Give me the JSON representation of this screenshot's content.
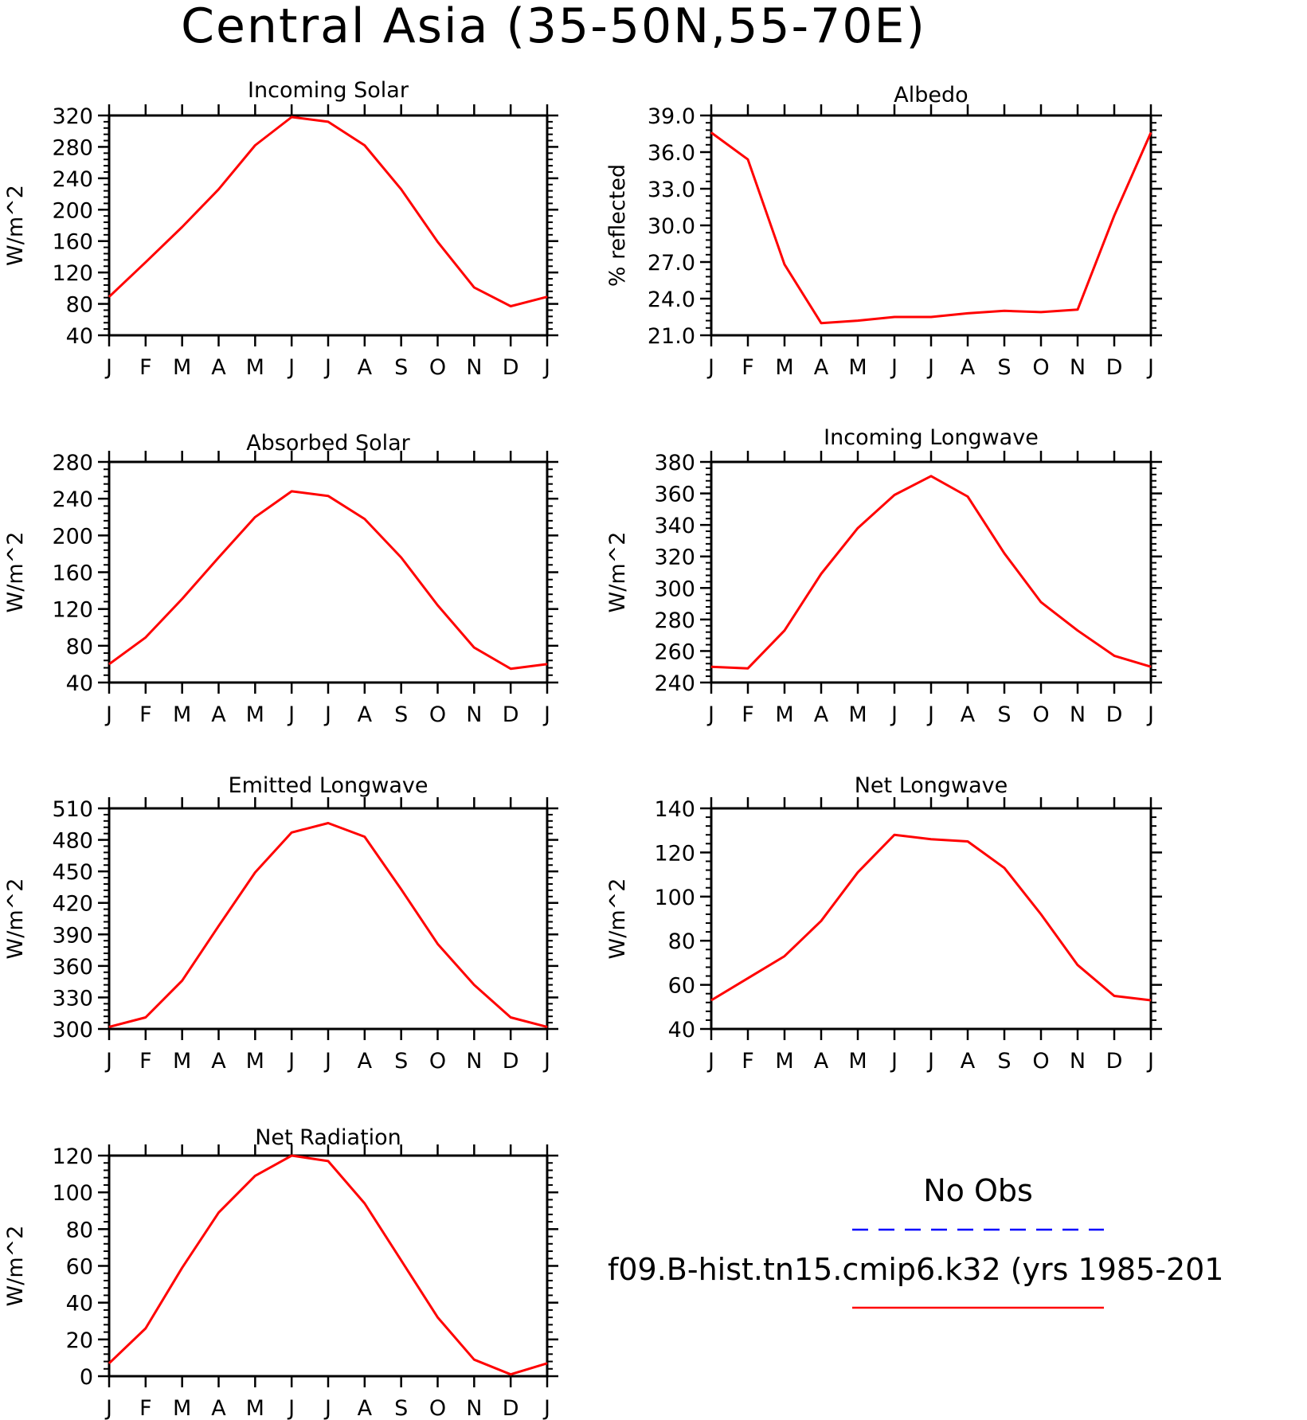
{
  "title": "Central Asia (35-50N,55-70E)",
  "month_labels": [
    "J",
    "F",
    "M",
    "A",
    "M",
    "J",
    "J",
    "A",
    "S",
    "O",
    "N",
    "D",
    "J"
  ],
  "colors": {
    "model": "#ff0000",
    "obs": "#0000ff"
  },
  "legend": {
    "obs_label": "No Obs",
    "model_label": "f09.B-hist.tn15.cmip6.k32 (yrs 1985-201"
  },
  "chart_data": [
    {
      "type": "line",
      "title": "Incoming Solar",
      "ylabel": "W/m^2",
      "ylim": [
        40,
        320
      ],
      "yticks": [
        "40",
        "80",
        "120",
        "160",
        "200",
        "240",
        "280",
        "320"
      ],
      "x": [
        "J",
        "F",
        "M",
        "A",
        "M",
        "J",
        "J",
        "A",
        "S",
        "O",
        "N",
        "D",
        "J"
      ],
      "series": [
        {
          "values": [
            89,
            133,
            178,
            226,
            282,
            318,
            312,
            282,
            226,
            159,
            101,
            77,
            89
          ]
        }
      ]
    },
    {
      "type": "line",
      "title": "Albedo",
      "ylabel": "% reflected",
      "ylim": [
        21.0,
        39.0
      ],
      "yticks": [
        "21.0",
        "24.0",
        "27.0",
        "30.0",
        "33.0",
        "36.0",
        "39.0"
      ],
      "x": [
        "J",
        "F",
        "M",
        "A",
        "M",
        "J",
        "J",
        "A",
        "S",
        "O",
        "N",
        "D",
        "J"
      ],
      "series": [
        {
          "values": [
            37.6,
            35.4,
            26.8,
            22.0,
            22.2,
            22.5,
            22.5,
            22.8,
            23.0,
            22.9,
            23.1,
            30.8,
            37.6
          ]
        }
      ]
    },
    {
      "type": "line",
      "title": "Absorbed Solar",
      "ylabel": "W/m^2",
      "ylim": [
        40,
        280
      ],
      "yticks": [
        "40",
        "80",
        "120",
        "160",
        "200",
        "240",
        "280"
      ],
      "x": [
        "J",
        "F",
        "M",
        "A",
        "M",
        "J",
        "J",
        "A",
        "S",
        "O",
        "N",
        "D",
        "J"
      ],
      "series": [
        {
          "values": [
            60,
            89,
            131,
            176,
            220,
            248,
            243,
            218,
            176,
            124,
            78,
            55,
            60
          ]
        }
      ]
    },
    {
      "type": "line",
      "title": "Incoming Longwave",
      "ylabel": "W/m^2",
      "ylim": [
        240,
        380
      ],
      "yticks": [
        "240",
        "260",
        "280",
        "300",
        "320",
        "340",
        "360",
        "380"
      ],
      "x": [
        "J",
        "F",
        "M",
        "A",
        "M",
        "J",
        "J",
        "A",
        "S",
        "O",
        "N",
        "D",
        "J"
      ],
      "series": [
        {
          "values": [
            250,
            249,
            273,
            309,
            338,
            359,
            371,
            358,
            322,
            291,
            273,
            257,
            250
          ]
        }
      ]
    },
    {
      "type": "line",
      "title": "Emitted Longwave",
      "ylabel": "W/m^2",
      "ylim": [
        300,
        510
      ],
      "yticks": [
        "300",
        "330",
        "360",
        "390",
        "420",
        "450",
        "480",
        "510"
      ],
      "x": [
        "J",
        "F",
        "M",
        "A",
        "M",
        "J",
        "J",
        "A",
        "S",
        "O",
        "N",
        "D",
        "J"
      ],
      "series": [
        {
          "values": [
            302,
            311,
            346,
            398,
            449,
            487,
            496,
            483,
            433,
            381,
            342,
            311,
            302
          ]
        }
      ]
    },
    {
      "type": "line",
      "title": "Net Longwave",
      "ylabel": "W/m^2",
      "ylim": [
        40,
        140
      ],
      "yticks": [
        "40",
        "60",
        "80",
        "100",
        "120",
        "140"
      ],
      "x": [
        "J",
        "F",
        "M",
        "A",
        "M",
        "J",
        "J",
        "A",
        "S",
        "O",
        "N",
        "D",
        "J"
      ],
      "series": [
        {
          "values": [
            53,
            63,
            73,
            89,
            111,
            128,
            126,
            125,
            113,
            92,
            69,
            55,
            53
          ]
        }
      ]
    },
    {
      "type": "line",
      "title": "Net Radiation",
      "ylabel": "W/m^2",
      "ylim": [
        0,
        120
      ],
      "yticks": [
        "0",
        "20",
        "40",
        "60",
        "80",
        "100",
        "120"
      ],
      "x": [
        "J",
        "F",
        "M",
        "A",
        "M",
        "J",
        "J",
        "A",
        "S",
        "O",
        "N",
        "D",
        "J"
      ],
      "series": [
        {
          "values": [
            7,
            26,
            59,
            89,
            109,
            120,
            117,
            94,
            63,
            32,
            9,
            1,
            7
          ]
        }
      ]
    }
  ]
}
